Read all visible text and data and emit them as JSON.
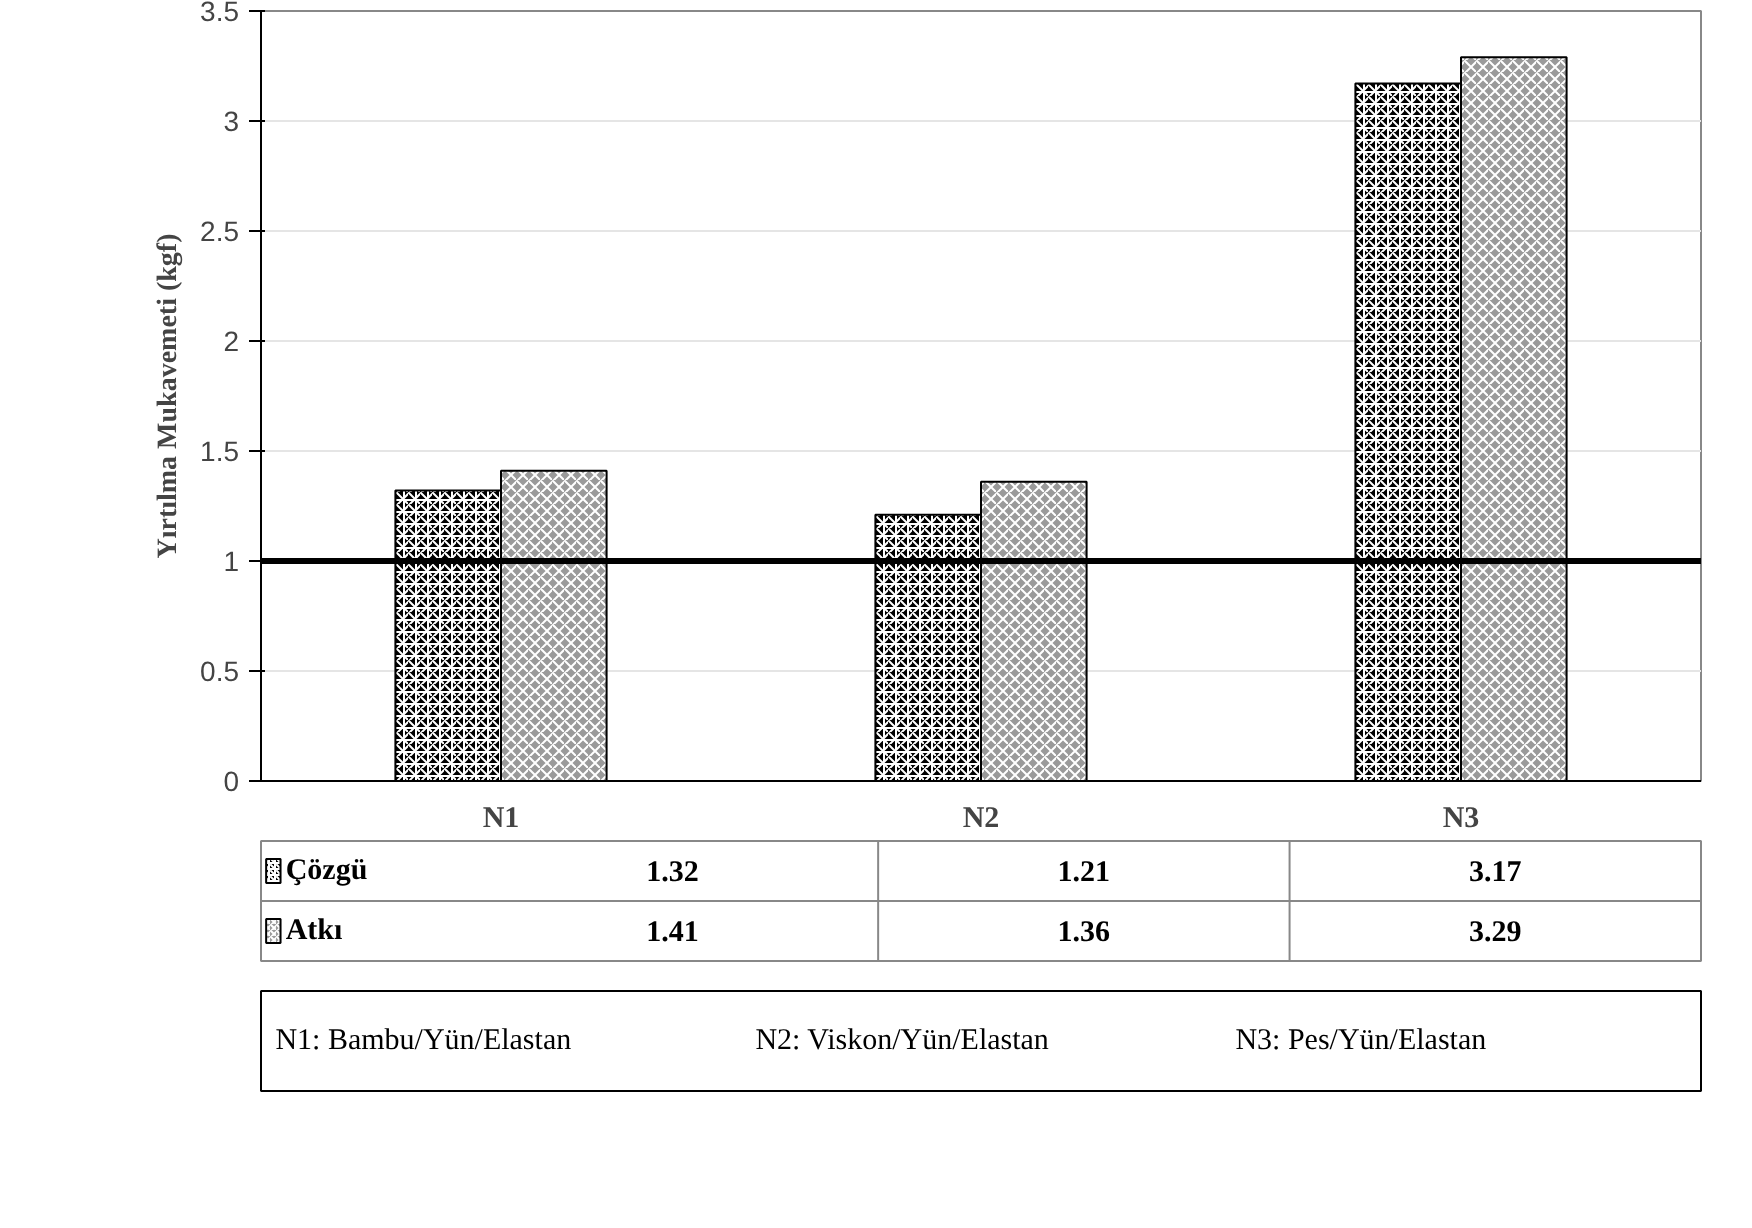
{
  "chart_data": {
    "type": "bar",
    "ylabel": "Yırtılma Mukavemeti (kgf)",
    "categories": [
      "N1",
      "N2",
      "N3"
    ],
    "series": [
      {
        "name": "Çözgü",
        "color": "#000000",
        "values": [
          1.32,
          1.21,
          3.17
        ]
      },
      {
        "name": "Atkı",
        "color": "#9a9a9a",
        "values": [
          1.41,
          1.36,
          3.29
        ]
      }
    ],
    "ylim": [
      0,
      3.5
    ],
    "yticks": [
      0,
      0.5,
      1,
      1.5,
      2,
      2.5,
      3,
      3.5
    ],
    "grid": "y",
    "data_labels": true,
    "legend": "bottom",
    "ref_lines": [
      {
        "axis": "y",
        "value": 1,
        "label": null,
        "color": "#000000"
      }
    ],
    "annotations": [
      "N1: Bambu/Yün/Elastan",
      "N2: Viskon/Yün/Elastan",
      "N3: Pes/Yün/Elastan"
    ]
  }
}
